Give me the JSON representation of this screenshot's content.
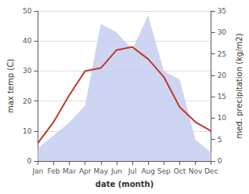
{
  "chart_data": {
    "type": "line",
    "categories": [
      "Jan",
      "Feb",
      "Mar",
      "Apr",
      "May",
      "Jun",
      "Jul",
      "Aug",
      "Sep",
      "Oct",
      "Nov",
      "Dec"
    ],
    "series": [
      {
        "type": "area",
        "color": "#c5cef0",
        "axis": "y2",
        "values": [
          3,
          6,
          9,
          13,
          32,
          30,
          26,
          34,
          21,
          19,
          5,
          2
        ]
      },
      {
        "type": "line",
        "color": "#c0392b",
        "values": [
          6,
          13,
          22,
          30,
          31,
          37,
          38,
          34,
          28,
          18,
          13,
          10
        ]
      }
    ],
    "xlabel": "date (month)",
    "ylabel": "max temp (C)",
    "y2label": "med. precipitation (kg/m2)",
    "ylim": [
      0,
      50
    ],
    "yticks": [
      0,
      10,
      20,
      30,
      40,
      50
    ],
    "y2lim": [
      0,
      35
    ],
    "y2ticks": [
      0,
      5,
      10,
      15,
      20,
      25,
      30,
      35
    ],
    "grid": true
  }
}
